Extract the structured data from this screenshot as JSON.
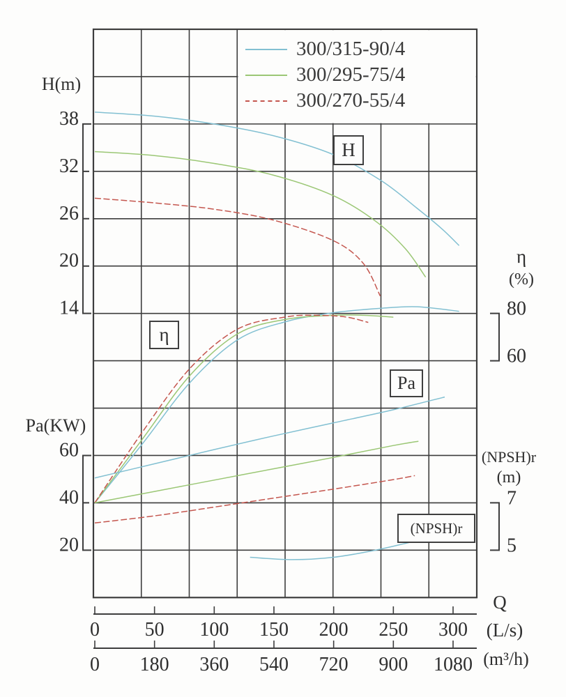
{
  "labels": {
    "H_axis": "H(m)",
    "Pa_axis": "Pa(KW)",
    "eta_axis": "η",
    "eta_unit": "(%)",
    "npsh_axis": "(NPSH)r",
    "npsh_unit": "(m)",
    "Q": "Q",
    "Ls_unit": "(L/s)",
    "m3h_unit": "(m³/h)",
    "box_H": "H",
    "box_eta": "η",
    "box_Pa": "Pa",
    "box_npsh": "(NPSH)r"
  },
  "legend": {
    "items": [
      {
        "label": "300/315-90/4",
        "color": "#82c0d2",
        "dash": "solid"
      },
      {
        "label": "300/295-75/4",
        "color": "#9bc775",
        "dash": "solid"
      },
      {
        "label": "300/270-55/4",
        "color": "#c4564e",
        "dash": "dashed"
      }
    ]
  },
  "colors": {
    "grid": "#3d3d3d",
    "ink": "#2f2f2f",
    "blue": "#82c0d2",
    "green": "#9bc775",
    "red": "#c4564e"
  },
  "chart_data": {
    "type": "line",
    "title": "",
    "grid": true,
    "x_axis": {
      "label": "Q",
      "ticks_Ls": [
        0,
        50,
        100,
        150,
        200,
        250,
        300
      ],
      "unit_Ls": "(L/s)",
      "ticks_m3h": [
        0,
        180,
        360,
        540,
        720,
        900,
        1080
      ],
      "unit_m3h": "(m³/h)",
      "range_Ls": [
        0,
        320
      ]
    },
    "y_axes": [
      {
        "id": "H",
        "label": "H(m)",
        "unit": "(m)",
        "ticks": [
          38,
          32,
          26,
          20,
          14
        ],
        "side": "left"
      },
      {
        "id": "Pa",
        "label": "Pa(KW)",
        "unit": "(KW)",
        "ticks": [
          60,
          40,
          20
        ],
        "side": "left"
      },
      {
        "id": "eta",
        "label": "η",
        "unit": "(%)",
        "ticks": [
          80,
          60
        ],
        "side": "right"
      },
      {
        "id": "npsh",
        "label": "(NPSH)r",
        "unit": "(m)",
        "ticks": [
          7,
          5
        ],
        "side": "right"
      }
    ],
    "series": [
      {
        "pump": "300/315-90/4",
        "quantity": "H",
        "axis": "H",
        "color": "#82c0d2",
        "dash": "solid",
        "points": [
          [
            0,
            39.5
          ],
          [
            50,
            39.0
          ],
          [
            100,
            38.0
          ],
          [
            150,
            36.5
          ],
          [
            200,
            34.1
          ],
          [
            240,
            30.8
          ],
          [
            270,
            27.3
          ],
          [
            290,
            24.8
          ],
          [
            305,
            22.6
          ]
        ]
      },
      {
        "pump": "300/295-75/4",
        "quantity": "H",
        "axis": "H",
        "color": "#9bc775",
        "dash": "solid",
        "points": [
          [
            0,
            34.5
          ],
          [
            50,
            34.0
          ],
          [
            100,
            33.0
          ],
          [
            150,
            31.5
          ],
          [
            200,
            28.9
          ],
          [
            235,
            25.7
          ],
          [
            260,
            22.2
          ],
          [
            277,
            18.6
          ]
        ]
      },
      {
        "pump": "300/270-55/4",
        "quantity": "H",
        "axis": "H",
        "color": "#c4564e",
        "dash": "dashed",
        "points": [
          [
            0,
            28.6
          ],
          [
            50,
            28.0
          ],
          [
            100,
            27.2
          ],
          [
            150,
            25.8
          ],
          [
            200,
            23.2
          ],
          [
            225,
            20.3
          ],
          [
            239,
            16.2
          ]
        ]
      },
      {
        "pump": "300/315-90/4",
        "quantity": "eta",
        "axis": "eta",
        "color": "#82c0d2",
        "dash": "solid",
        "points": [
          [
            0,
            0
          ],
          [
            40,
            25
          ],
          [
            80,
            51
          ],
          [
            120,
            69
          ],
          [
            160,
            76.5
          ],
          [
            200,
            80.3
          ],
          [
            240,
            82.2
          ],
          [
            270,
            82.8
          ],
          [
            305,
            80.9
          ]
        ]
      },
      {
        "pump": "300/295-75/4",
        "quantity": "eta",
        "axis": "eta",
        "color": "#9bc775",
        "dash": "solid",
        "points": [
          [
            0,
            0
          ],
          [
            40,
            27
          ],
          [
            80,
            54
          ],
          [
            120,
            71.5
          ],
          [
            160,
            77.5
          ],
          [
            200,
            79.2
          ],
          [
            225,
            79.2
          ],
          [
            250,
            78.4
          ]
        ]
      },
      {
        "pump": "300/270-55/4",
        "quantity": "eta",
        "axis": "eta",
        "color": "#c4564e",
        "dash": "dashed",
        "points": [
          [
            0,
            0
          ],
          [
            40,
            30
          ],
          [
            80,
            57
          ],
          [
            120,
            73.5
          ],
          [
            160,
            78.5
          ],
          [
            185,
            79.2
          ],
          [
            210,
            78.5
          ],
          [
            229,
            76.2
          ]
        ]
      },
      {
        "pump": "300/315-90/4",
        "quantity": "Pa",
        "axis": "Pa",
        "color": "#82c0d2",
        "dash": "solid",
        "points": [
          [
            0,
            50.5
          ],
          [
            50,
            56.5
          ],
          [
            100,
            62.5
          ],
          [
            150,
            68.3
          ],
          [
            200,
            73.8
          ],
          [
            250,
            79.3
          ],
          [
            293,
            84.7
          ]
        ]
      },
      {
        "pump": "300/295-75/4",
        "quantity": "Pa",
        "axis": "Pa",
        "color": "#9bc775",
        "dash": "solid",
        "points": [
          [
            0,
            40
          ],
          [
            50,
            44.8
          ],
          [
            100,
            49.6
          ],
          [
            150,
            54.4
          ],
          [
            200,
            59.2
          ],
          [
            250,
            64.2
          ],
          [
            271,
            66
          ]
        ]
      },
      {
        "pump": "300/270-55/4",
        "quantity": "Pa",
        "axis": "Pa",
        "color": "#c4564e",
        "dash": "dashed",
        "points": [
          [
            0,
            31.5
          ],
          [
            50,
            34.5
          ],
          [
            100,
            38.2
          ],
          [
            150,
            42
          ],
          [
            200,
            45.8
          ],
          [
            250,
            49.8
          ],
          [
            268,
            51.5
          ]
        ]
      },
      {
        "pump": "300/315-90/4",
        "quantity": "npsh",
        "axis": "npsh",
        "color": "#82c0d2",
        "dash": "solid",
        "points": [
          [
            130,
            4.7
          ],
          [
            165,
            4.6
          ],
          [
            200,
            4.7
          ],
          [
            235,
            5.0
          ],
          [
            270,
            5.4
          ],
          [
            300,
            5.7
          ]
        ]
      }
    ]
  }
}
